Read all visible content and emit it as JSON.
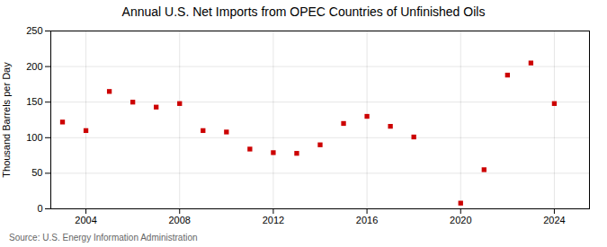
{
  "chart_data": {
    "type": "scatter",
    "title": "Annual U.S. Net Imports from OPEC Countries of Unfinished Oils",
    "ylabel": "Thousand Barrels per Day",
    "source": "Source: U.S. Energy Information Administration",
    "x": [
      2003,
      2004,
      2005,
      2006,
      2007,
      2008,
      2009,
      2010,
      2011,
      2012,
      2013,
      2014,
      2015,
      2016,
      2017,
      2018,
      2020,
      2021,
      2022,
      2023,
      2024
    ],
    "values": [
      122,
      110,
      165,
      150,
      143,
      148,
      110,
      108,
      84,
      79,
      78,
      90,
      120,
      130,
      116,
      101,
      8,
      55,
      188,
      205,
      148
    ],
    "color": "#cc0000",
    "marker": "square",
    "xlim": [
      2002.5,
      2025.5
    ],
    "ylim": [
      0,
      250
    ],
    "xticks": [
      2004,
      2008,
      2012,
      2016,
      2020,
      2024
    ],
    "yticks": [
      0,
      50,
      100,
      150,
      200,
      250
    ],
    "grid": true
  }
}
